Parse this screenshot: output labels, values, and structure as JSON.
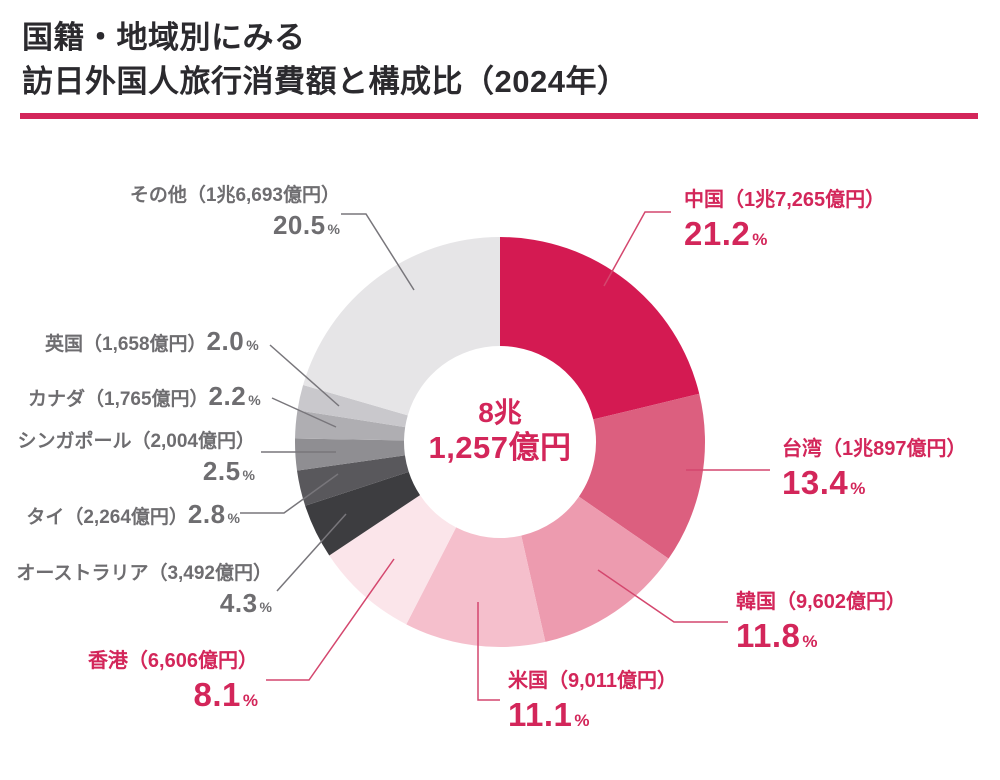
{
  "title": {
    "line1": "国籍・地域別にみる",
    "line2": "訪日外国人旅行消費額と構成比（2024年）"
  },
  "center": {
    "line1": "8兆",
    "line2": "1,257億円"
  },
  "palette": {
    "accent": "#D3265A",
    "gray_text": "#6E6D70",
    "leader_pink": "#D4476E",
    "leader_gray": "#78767B",
    "title_color": "#2B2A2E",
    "underline": "#D3265A",
    "background": "#FFFFFF"
  },
  "chart_data": {
    "type": "pie",
    "subtype": "donut",
    "title": "国籍・地域別にみる訪日外国人旅行消費額と構成比（2024年）",
    "year": "2024年",
    "total_label": "8兆1,257億円",
    "total_value_oku_yen": 81257,
    "unit": "億円",
    "percent_sign": "%",
    "start_angle_deg": 0,
    "direction": "clockwise",
    "legend_position": "callout-labels",
    "items": [
      {
        "id": "china",
        "label": "中国",
        "display": "中国（1兆7,265億円）",
        "value_oku_yen": 17265,
        "percent": 21.2,
        "percent_display": "21.2",
        "color": "#D41A52",
        "text_color": "accent"
      },
      {
        "id": "taiwan",
        "label": "台湾",
        "display": "台湾（1兆897億円）",
        "value_oku_yen": 10897,
        "percent": 13.4,
        "percent_display": "13.4",
        "color": "#DC5F7F",
        "text_color": "accent"
      },
      {
        "id": "korea",
        "label": "韓国",
        "display": "韓国（9,602億円）",
        "value_oku_yen": 9602,
        "percent": 11.8,
        "percent_display": "11.8",
        "color": "#ED9BAF",
        "text_color": "accent"
      },
      {
        "id": "usa",
        "label": "米国",
        "display": "米国（9,011億円）",
        "value_oku_yen": 9011,
        "percent": 11.1,
        "percent_display": "11.1",
        "color": "#F5BFCC",
        "text_color": "accent"
      },
      {
        "id": "hongkong",
        "label": "香港",
        "display": "香港（6,606億円）",
        "value_oku_yen": 6606,
        "percent": 8.1,
        "percent_display": "8.1",
        "color": "#FBE5EA",
        "text_color": "accent"
      },
      {
        "id": "australia",
        "label": "オーストラリア",
        "display": "オーストラリア（3,492億円）",
        "value_oku_yen": 3492,
        "percent": 4.3,
        "percent_display": "4.3",
        "color": "#3D3D40",
        "text_color": "gray_text"
      },
      {
        "id": "thailand",
        "label": "タイ",
        "display": "タイ（2,264億円）",
        "value_oku_yen": 2264,
        "percent": 2.8,
        "percent_display": "2.8",
        "color": "#59585C",
        "text_color": "gray_text"
      },
      {
        "id": "singapore",
        "label": "シンガポール",
        "display": "シンガポール（2,004億円）",
        "value_oku_yen": 2004,
        "percent": 2.5,
        "percent_display": "2.5",
        "color": "#8F8E92",
        "text_color": "gray_text"
      },
      {
        "id": "canada",
        "label": "カナダ",
        "display": "カナダ（1,765億円）",
        "value_oku_yen": 1765,
        "percent": 2.2,
        "percent_display": "2.2",
        "color": "#AFAEB2",
        "text_color": "gray_text"
      },
      {
        "id": "uk",
        "label": "英国",
        "display": "英国（1,658億円）",
        "value_oku_yen": 1658,
        "percent": 2.0,
        "percent_display": "2.0",
        "color": "#C9C8CC",
        "text_color": "gray_text"
      },
      {
        "id": "others",
        "label": "その他",
        "display": "その他（1兆6,693億円）",
        "value_oku_yen": 16693,
        "percent": 20.5,
        "percent_display": "20.5",
        "color": "#E6E5E7",
        "text_color": "gray_text"
      }
    ]
  }
}
